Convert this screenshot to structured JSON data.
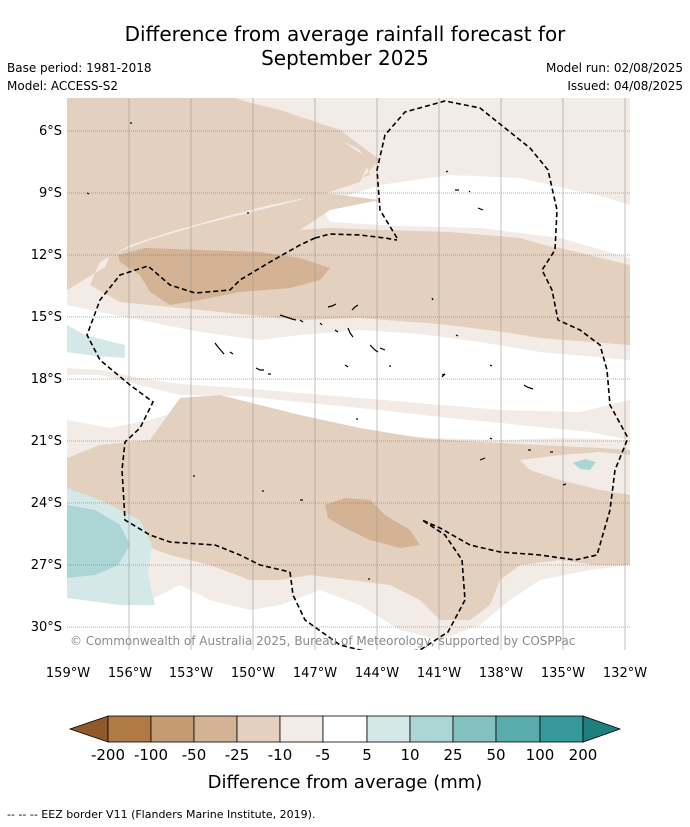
{
  "header": {
    "title_line1": "Difference from average rainfall forecast for",
    "title_line2": "September 2025",
    "base_period": "Base period: 1981-2018",
    "model": "Model: ACCESS-S2",
    "model_run": "Model run: 02/08/2025",
    "issued": "Issued: 04/08/2025"
  },
  "map": {
    "lat_ticks": [
      "6°S",
      "9°S",
      "12°S",
      "15°S",
      "18°S",
      "21°S",
      "24°S",
      "27°S",
      "30°S"
    ],
    "lon_ticks": [
      "159°W",
      "156°W",
      "153°W",
      "150°W",
      "147°W",
      "144°W",
      "141°W",
      "138°W",
      "135°W",
      "132°W"
    ],
    "copyright": "© Commonwealth of Australia 2025, Bureau of Meteorology, supported by COSPPac",
    "colors": {
      "below_200": "#8f5a2a",
      "-200_-100": "#b07a46",
      "-100_-50": "#c49a72",
      "-50_-25": "#d3b393",
      "-25_-10": "#e3d0be",
      "-10_-5": "#f3ebe5",
      "-5_5": "#ffffff",
      "5_10": "#d3e8e7",
      "10_25": "#acd6d5",
      "25_50": "#82c1c0",
      "50_100": "#5aacab",
      "100_200": "#34999a",
      "above_200": "#1f7f7f"
    }
  },
  "colorbar": {
    "labels": [
      "-200",
      "-100",
      "-50",
      "-25",
      "-10",
      "-5",
      "5",
      "10",
      "25",
      "50",
      "100",
      "200"
    ],
    "title": "Difference from average (mm)"
  },
  "footnote": "--  --  -- EEZ border V11 (Flanders Marine Institute, 2019)."
}
